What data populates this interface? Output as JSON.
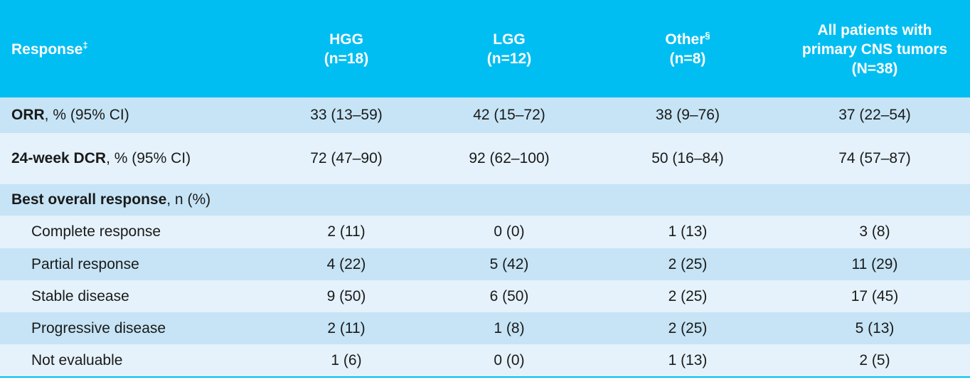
{
  "header": {
    "response": "Response",
    "response_mark": "‡",
    "hgg": [
      "HGG",
      "(n=18)"
    ],
    "lgg": [
      "LGG",
      "(n=12)"
    ],
    "other": [
      "Other",
      "(n=8)"
    ],
    "other_mark": "§",
    "all": [
      "All patients with",
      "primary CNS tumors",
      "(N=38)"
    ]
  },
  "rows": {
    "orr": {
      "label_bold": "ORR",
      "label_rest": ", % (95% CI)",
      "values": [
        "33 (13–59)",
        "42 (15–72)",
        "38 (9–76)",
        "37 (22–54)"
      ]
    },
    "dcr": {
      "label_bold": "24-week DCR",
      "label_rest": ", % (95% CI)",
      "values": [
        "72 (47–90)",
        "92 (62–100)",
        "50 (16–84)",
        "74 (57–87)"
      ]
    },
    "best": {
      "label_bold": "Best overall response",
      "label_rest": ", n (%)"
    },
    "cr": {
      "label": "Complete response",
      "values": [
        "2 (11)",
        "0 (0)",
        "1 (13)",
        "3 (8)"
      ]
    },
    "pr": {
      "label": "Partial response",
      "values": [
        "4 (22)",
        "5 (42)",
        "2 (25)",
        "11 (29)"
      ]
    },
    "sd": {
      "label": "Stable disease",
      "values": [
        "9 (50)",
        "6 (50)",
        "2 (25)",
        "17 (45)"
      ]
    },
    "pd": {
      "label": "Progressive disease",
      "values": [
        "2 (11)",
        "1 (8)",
        "2 (25)",
        "5 (13)"
      ]
    },
    "ne": {
      "label": "Not evaluable",
      "values": [
        "1 (6)",
        "0 (0)",
        "1 (13)",
        "2 (5)"
      ]
    }
  }
}
